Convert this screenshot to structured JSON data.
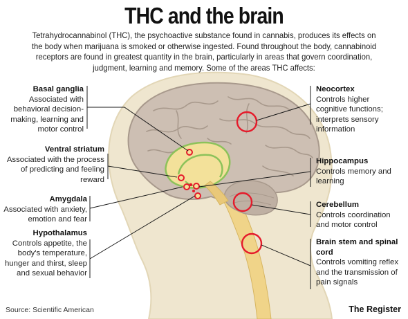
{
  "title": "THC and the brain",
  "intro": "Tetrahydrocannabinol (THC), the psychoactive substance found in cannabis, produces its effects on the body when marijuana is smoked or otherwise ingested. Found throughout the body, cannabinoid receptors are found in greatest quantity in the brain, particularly in areas that govern coordination, judgment, learning and memory. Some of the areas THC affects:",
  "regions": {
    "basal_ganglia": {
      "name": "Basal ganglia",
      "desc": "Associated with behavioral decision-making, learning and motor control"
    },
    "ventral_striatum": {
      "name": "Ventral striatum",
      "desc": "Associated with the process of predicting and feeling reward"
    },
    "amygdala": {
      "name": "Amygdala",
      "desc": "Associated with anxiety, emotion and fear"
    },
    "hypothalamus": {
      "name": "Hypothalamus",
      "desc": "Controls appetite, the body's temperature, hunger and thirst, sleep and sexual behavior"
    },
    "neocortex": {
      "name": "Neocortex",
      "desc": "Controls higher cognitive functions; interprets sensory information"
    },
    "hippocampus": {
      "name": "Hippocampus",
      "desc": "Controls memory and learning"
    },
    "cerebellum": {
      "name": "Cerebellum",
      "desc": "Controls coordination and motor control"
    },
    "brain_stem": {
      "name": "Brain stem and spinal cord",
      "desc": "Controls vomiting reflex and the transmission of pain signals"
    }
  },
  "source": "Source: Scientific American",
  "credit": "The Register",
  "colors": {
    "brain": "#cdbfb3",
    "brain_shadow": "#a8998c",
    "head": "#efe6cf",
    "head_outline": "#e2d6b6",
    "limbic": "#f3e19a",
    "limbic_outline": "#8cc25a",
    "marker": "#e51b2b",
    "stem": "#f0d489",
    "leader": "#1a1a1a"
  }
}
